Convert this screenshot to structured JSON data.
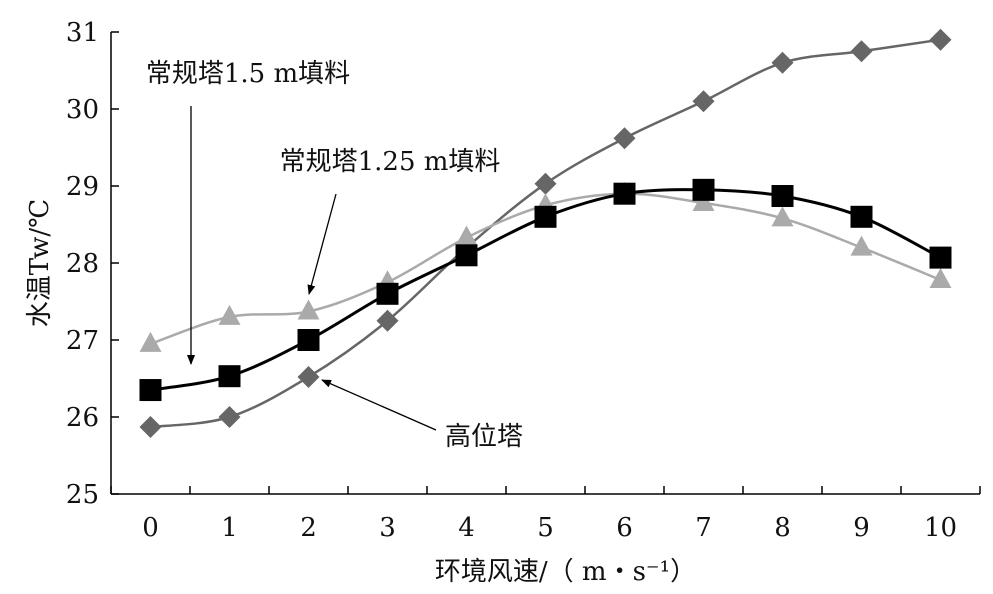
{
  "chart_data": {
    "type": "line",
    "xlabel": "环境风速/（ m・s⁻¹）",
    "ylabel": "水温Tw/℃",
    "x": [
      0,
      1,
      2,
      3,
      4,
      5,
      6,
      7,
      8,
      9,
      10
    ],
    "xlim": [
      -0.5,
      10.5
    ],
    "ylim": [
      25,
      31
    ],
    "yticks": [
      25,
      26,
      27,
      28,
      29,
      30,
      31
    ],
    "xticks": [
      0,
      1,
      2,
      3,
      4,
      5,
      6,
      7,
      8,
      9,
      10
    ],
    "grid": false,
    "legend": "none",
    "series": [
      {
        "name": "常规塔1.5 m填料",
        "marker": "square",
        "color": "#000000",
        "values": [
          26.35,
          26.53,
          27.0,
          27.6,
          28.1,
          28.6,
          28.9,
          28.95,
          28.87,
          28.6,
          28.07
        ]
      },
      {
        "name": "常规塔1.25 m填料",
        "marker": "triangle",
        "color": "#aaaaaa",
        "values": [
          26.95,
          27.3,
          27.37,
          27.75,
          28.33,
          28.75,
          28.9,
          28.78,
          28.58,
          28.2,
          27.78
        ]
      },
      {
        "name": "高位塔",
        "marker": "diamond",
        "color": "#666666",
        "values": [
          25.87,
          26.0,
          26.52,
          27.25,
          28.2,
          29.03,
          29.62,
          30.1,
          30.6,
          30.75,
          30.9
        ]
      }
    ],
    "annotations": [
      {
        "text": "常规塔1.5 m填料",
        "series": 0,
        "x": 0.5,
        "y": 26.35
      },
      {
        "text": "常规塔1.25 m填料",
        "series": 1,
        "x": 2.0,
        "y": 27.37
      },
      {
        "text": "高位塔",
        "series": 2,
        "x": 2.2,
        "y": 26.52
      }
    ]
  }
}
